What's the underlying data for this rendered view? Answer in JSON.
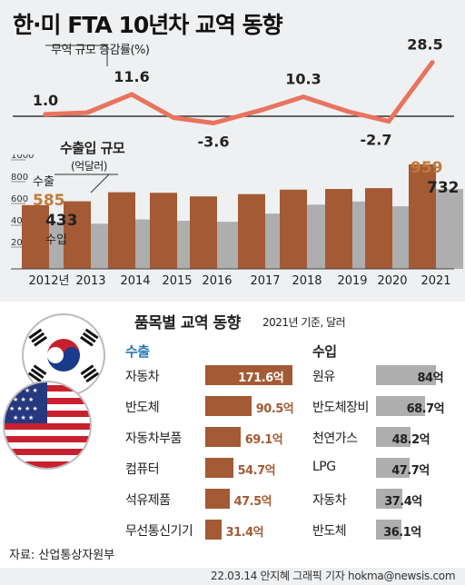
{
  "title": "한·미 FTA 10년차 교역 동향",
  "colors": {
    "line": "#e8735f",
    "export": "#a45a35",
    "import": "#aeaeae",
    "accent_blue": "#2a7ab8",
    "accent_orange": "#c07a3a"
  },
  "chart_data": [
    {
      "type": "line",
      "legend_label": "무역 규모 증감률(%)",
      "categories": [
        "2012년",
        "2013",
        "2014",
        "2015",
        "2016",
        "2017",
        "2018",
        "2019",
        "2020",
        "2021"
      ],
      "values": [
        1.0,
        1.9,
        11.6,
        -0.7,
        -3.6,
        3.3,
        10.3,
        2.4,
        -2.7,
        28.5
      ],
      "labels": [
        {
          "index": 0,
          "text": "1.0"
        },
        {
          "index": 2,
          "text": "11.6"
        },
        {
          "index": 4,
          "text": "-3.6"
        },
        {
          "index": 6,
          "text": "10.3"
        },
        {
          "index": 8,
          "text": "-2.7"
        },
        {
          "index": 9,
          "text": "28.5"
        }
      ]
    },
    {
      "type": "bar",
      "title": "수출입 규모",
      "unit": "(억달러)",
      "categories": [
        "2012년",
        "2013",
        "2014",
        "2015",
        "2016",
        "2017",
        "2018",
        "2019",
        "2020",
        "2021"
      ],
      "yticks": [
        "1000",
        "800",
        "600",
        "400",
        "200"
      ],
      "ylim": [
        0,
        1000
      ],
      "series": [
        {
          "name": "수출",
          "values": [
            585,
            620,
            703,
            698,
            665,
            686,
            727,
            733,
            741,
            959
          ]
        },
        {
          "name": "수입",
          "values": [
            433,
            414,
            454,
            441,
            432,
            507,
            589,
            618,
            574,
            732
          ]
        }
      ],
      "labels": [
        {
          "series": 0,
          "index": 0,
          "text": "585"
        },
        {
          "series": 1,
          "index": 0,
          "text": "433"
        },
        {
          "series": 0,
          "index": 9,
          "text": "959"
        },
        {
          "series": 1,
          "index": 9,
          "text": "732"
        }
      ]
    },
    {
      "type": "bar",
      "title": "품목별 교역 동향",
      "subtitle": "2021년 기준, 달러",
      "groups": [
        {
          "name": "수출",
          "items": [
            {
              "label": "자동차",
              "value": 171.6,
              "text": "171.6억"
            },
            {
              "label": "반도체",
              "value": 90.5,
              "text": "90.5억"
            },
            {
              "label": "자동차부품",
              "value": 69.1,
              "text": "69.1억"
            },
            {
              "label": "컴퓨터",
              "value": 54.7,
              "text": "54.7억"
            },
            {
              "label": "석유제품",
              "value": 47.5,
              "text": "47.5억"
            },
            {
              "label": "무선통신기기",
              "value": 31.4,
              "text": "31.4억"
            }
          ]
        },
        {
          "name": "수입",
          "items": [
            {
              "label": "원유",
              "value": 84,
              "text": "84억"
            },
            {
              "label": "반도체장비",
              "value": 68.7,
              "text": "68.7억"
            },
            {
              "label": "천연가스",
              "value": 48.2,
              "text": "48.2억"
            },
            {
              "label": "LPG",
              "value": 47.7,
              "text": "47.7억"
            },
            {
              "label": "자동차",
              "value": 37.4,
              "text": "37.4억"
            },
            {
              "label": "반도체",
              "value": 36.1,
              "text": "36.1억"
            }
          ]
        }
      ]
    }
  ],
  "footer": {
    "source": "자료: 산업통상자원부",
    "credit": "22.03.14 안지혜 그래픽 기자 hokma@newsis.com"
  }
}
